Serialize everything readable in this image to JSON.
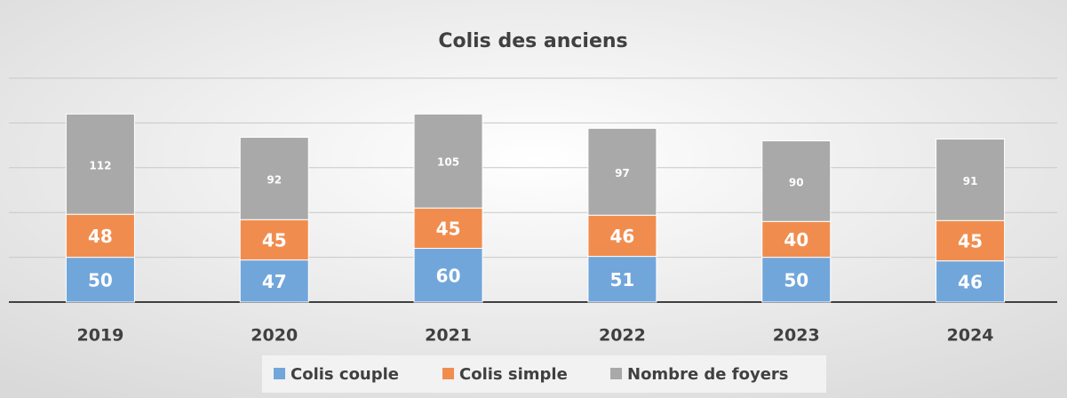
{
  "chart_data": {
    "type": "stacked_bar",
    "title": "Colis des anciens",
    "categories": [
      "2019",
      "2020",
      "2021",
      "2022",
      "2023",
      "2024"
    ],
    "series": [
      {
        "name": "Colis couple",
        "color": "#71a6db",
        "values": [
          50,
          47,
          60,
          51,
          50,
          46
        ]
      },
      {
        "name": "Colis simple",
        "color": "#f08d4e",
        "values": [
          48,
          45,
          45,
          46,
          40,
          45
        ]
      },
      {
        "name": "Nombre de foyers",
        "color": "#a9a9a9",
        "values": [
          112,
          92,
          105,
          97,
          90,
          91
        ]
      }
    ],
    "ylim": [
      0,
      250
    ],
    "yticks": [
      0,
      50,
      100,
      150,
      200,
      250
    ],
    "grid": true,
    "legend": "bottom"
  }
}
